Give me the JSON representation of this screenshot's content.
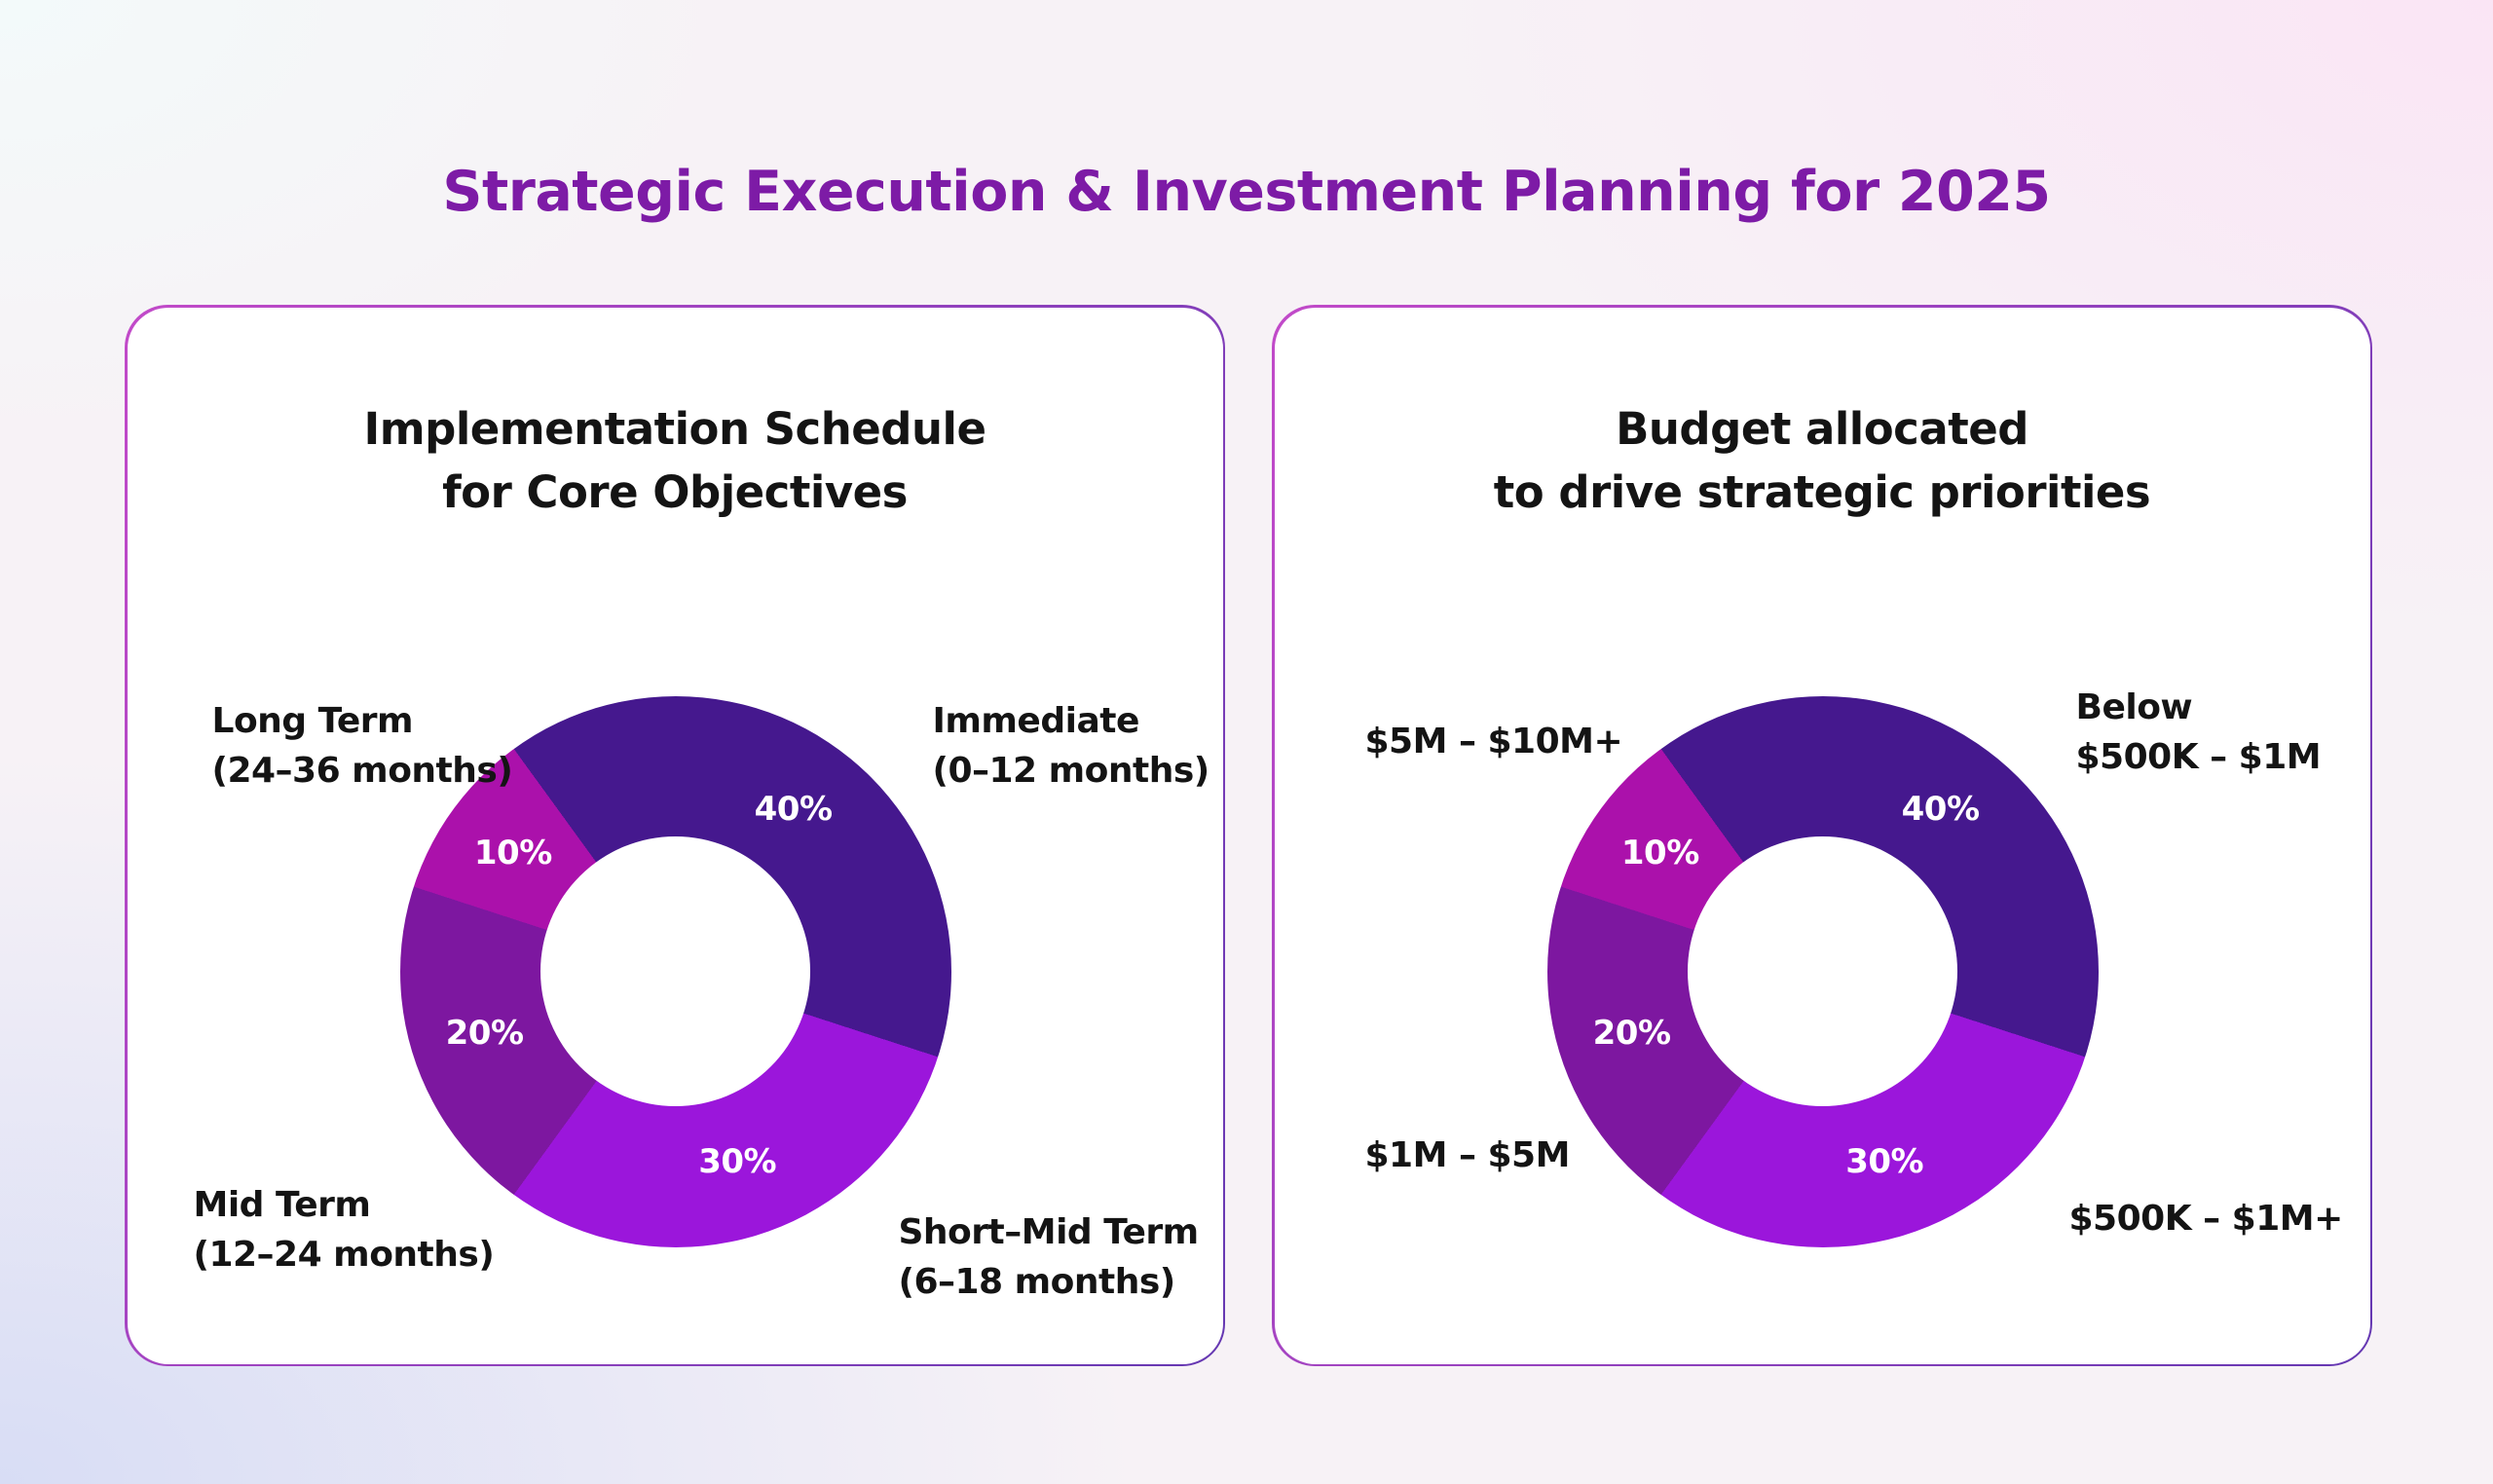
{
  "header": {
    "title": "Strategic Execution & Investment Planning for 2025"
  },
  "colors": {
    "bg_corner_tl": "#F3FAFA",
    "bg_corner_tr": "#FAE5F5",
    "bg_corner_bl": "#D8DDF5",
    "bg_corner_br": "#F7F2F6",
    "title_text": "#7D1BA6",
    "card_bg": "#FFFFFF",
    "card_border_start": "#C24AC9",
    "card_border_end": "#6538B2",
    "label_text": "#141414",
    "pct_text": "#FFFFFF"
  },
  "chart_data": [
    {
      "type": "pie",
      "variant": "donut",
      "card_title_lines": [
        "Implementation Schedule",
        "for Core Objectives"
      ],
      "unit": "%",
      "start_angle_deg": -36,
      "direction": "clockwise",
      "inner_radius_ratio": 0.49,
      "legend_position": "around-chart",
      "segments": [
        {
          "label_lines": [
            "Immediate",
            "(0–12 months)"
          ],
          "value": 40,
          "color": "#45188E",
          "label_corner": "top-right"
        },
        {
          "label_lines": [
            "Short–Mid Term",
            "(6–18 months)"
          ],
          "value": 30,
          "color": "#9B16DB",
          "label_corner": "bottom-right"
        },
        {
          "label_lines": [
            "Mid Term",
            "(12–24 months)"
          ],
          "value": 20,
          "color": "#7D17A0",
          "label_corner": "bottom-left"
        },
        {
          "label_lines": [
            "Long Term",
            "(24–36 months)"
          ],
          "value": 10,
          "color": "#AB11AB",
          "label_corner": "top-left"
        }
      ]
    },
    {
      "type": "pie",
      "variant": "donut",
      "card_title_lines": [
        "Budget allocated",
        "to drive strategic priorities"
      ],
      "unit": "%",
      "start_angle_deg": -36,
      "direction": "clockwise",
      "inner_radius_ratio": 0.49,
      "legend_position": "around-chart",
      "segments": [
        {
          "label_lines": [
            "Below",
            "$500K – $1M"
          ],
          "value": 40,
          "color": "#45188E",
          "label_corner": "top-right"
        },
        {
          "label_lines": [
            "$500K – $1M+"
          ],
          "value": 30,
          "color": "#9B16DB",
          "label_corner": "bottom-right"
        },
        {
          "label_lines": [
            "$1M – $5M"
          ],
          "value": 20,
          "color": "#7D17A0",
          "label_corner": "bottom-left"
        },
        {
          "label_lines": [
            "$5M – $10M+"
          ],
          "value": 10,
          "color": "#AB11AB",
          "label_corner": "top-left"
        }
      ]
    }
  ]
}
